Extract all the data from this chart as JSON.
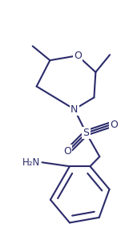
{
  "bg_color": "#ffffff",
  "line_color": "#2b2b6b",
  "lw": 1.5,
  "figsize": [
    1.66,
    2.84
  ],
  "dpi": 100,
  "xlim": [
    0,
    166
  ],
  "ylim": [
    0,
    284
  ]
}
